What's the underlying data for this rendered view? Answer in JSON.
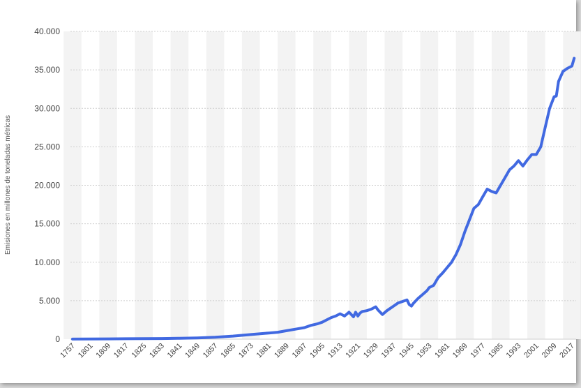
{
  "chart_data": {
    "type": "line",
    "title": "",
    "xlabel": "",
    "ylabel": "Emisiones en millones de toneladas métricas",
    "ylim": [
      0,
      40000
    ],
    "yticks": [
      0,
      5000,
      10000,
      15000,
      20000,
      25000,
      30000,
      35000,
      40000
    ],
    "ytick_labels": [
      "0",
      "5.000",
      "10.000",
      "15.000",
      "20.000",
      "25.000",
      "30.000",
      "35.000",
      "40.000"
    ],
    "x_tick_labels": [
      "1757",
      "1801",
      "1809",
      "1817",
      "1825",
      "1833",
      "1841",
      "1849",
      "1857",
      "1865",
      "1873",
      "1881",
      "1889",
      "1897",
      "1905",
      "1913",
      "1921",
      "1929",
      "1937",
      "1945",
      "1953",
      "1961",
      "1969",
      "1977",
      "1985",
      "1993",
      "2001",
      "2009",
      "2017"
    ],
    "grid": true,
    "line_color": "#4169e1",
    "series": [
      {
        "x": [
          1757,
          1801,
          1809,
          1817,
          1825,
          1833,
          1841,
          1849,
          1857,
          1865,
          1873,
          1881,
          1885,
          1889,
          1893,
          1897,
          1900,
          1903,
          1905,
          1907,
          1909,
          1911,
          1913,
          1915,
          1917,
          1919,
          1920,
          1921,
          1922,
          1923,
          1925,
          1927,
          1929,
          1930,
          1932,
          1934,
          1936,
          1937,
          1939,
          1941,
          1943,
          1944,
          1945,
          1946,
          1948,
          1950,
          1952,
          1953,
          1955,
          1957,
          1959,
          1961,
          1963,
          1965,
          1967,
          1969,
          1971,
          1973,
          1975,
          1977,
          1979,
          1981,
          1983,
          1985,
          1987,
          1989,
          1991,
          1993,
          1995,
          1997,
          1999,
          2001,
          2003,
          2005,
          2007,
          2009,
          2010,
          2011,
          2013,
          2015,
          2017,
          2018
        ],
        "values": [
          10,
          30,
          40,
          50,
          60,
          80,
          120,
          160,
          250,
          400,
          600,
          800,
          900,
          1100,
          1300,
          1500,
          1800,
          2000,
          2200,
          2500,
          2800,
          3000,
          3300,
          3000,
          3500,
          2900,
          3500,
          3000,
          3400,
          3600,
          3700,
          3900,
          4200,
          3800,
          3200,
          3700,
          4100,
          4300,
          4700,
          4900,
          5100,
          4500,
          4300,
          4700,
          5300,
          5800,
          6300,
          6700,
          7000,
          8000,
          8600,
          9300,
          10000,
          11000,
          12300,
          14000,
          15500,
          17000,
          17500,
          18500,
          19500,
          19200,
          19000,
          20000,
          21000,
          22000,
          22500,
          23200,
          22500,
          23300,
          24000,
          24000,
          25000,
          27500,
          30000,
          31500,
          31600,
          33500,
          34800,
          35200,
          35500,
          36500
        ]
      }
    ]
  }
}
